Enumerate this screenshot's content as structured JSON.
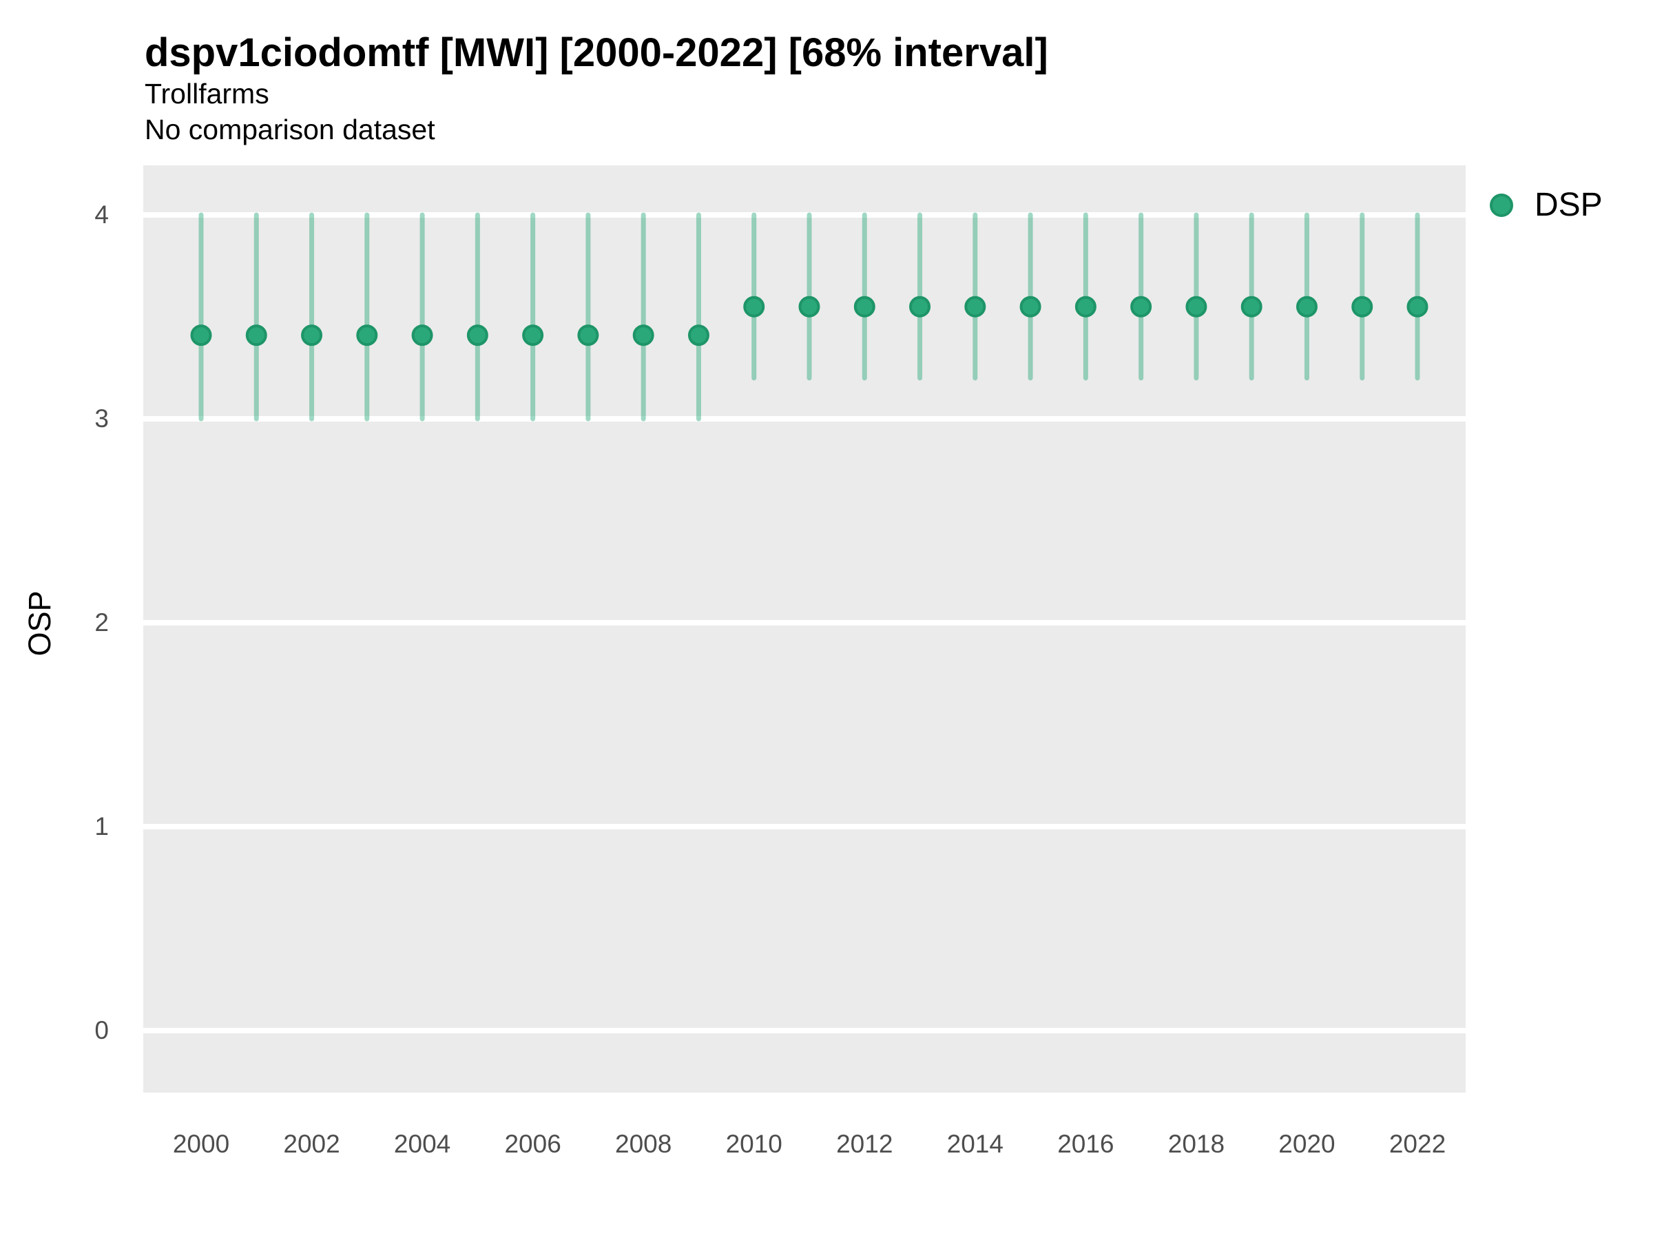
{
  "chart_data": {
    "type": "scatter",
    "mark": "pointrange",
    "title": "dspv1ciodomtf [MWI] [2000-2022] [68% interval]",
    "subtitle": "Trollfarms",
    "note": "No comparison dataset",
    "ylabel": "OSP",
    "xlabel": "",
    "interval_label": "68% interval",
    "ylim": [
      0,
      4
    ],
    "xlim": [
      1999,
      2023
    ],
    "grid": true,
    "legend_position": "right",
    "x": [
      2000,
      2001,
      2002,
      2003,
      2004,
      2005,
      2006,
      2007,
      2008,
      2009,
      2010,
      2011,
      2012,
      2013,
      2014,
      2015,
      2016,
      2017,
      2018,
      2019,
      2020,
      2021,
      2022
    ],
    "series": [
      {
        "name": "DSP",
        "values": [
          3.41,
          3.41,
          3.41,
          3.41,
          3.41,
          3.41,
          3.41,
          3.41,
          3.41,
          3.41,
          3.55,
          3.55,
          3.55,
          3.55,
          3.55,
          3.55,
          3.55,
          3.55,
          3.55,
          3.55,
          3.55,
          3.55,
          3.55
        ],
        "low": [
          3.0,
          3.0,
          3.0,
          3.0,
          3.0,
          3.0,
          3.0,
          3.0,
          3.0,
          3.0,
          3.2,
          3.2,
          3.2,
          3.2,
          3.2,
          3.2,
          3.2,
          3.2,
          3.2,
          3.2,
          3.2,
          3.2,
          3.2
        ],
        "high": [
          4.0,
          4.0,
          4.0,
          4.0,
          4.0,
          4.0,
          4.0,
          4.0,
          4.0,
          4.0,
          4.0,
          4.0,
          4.0,
          4.0,
          4.0,
          4.0,
          4.0,
          4.0,
          4.0,
          4.0,
          4.0,
          4.0,
          4.0
        ]
      }
    ],
    "x_ticks": [
      2000,
      2002,
      2004,
      2006,
      2008,
      2010,
      2012,
      2014,
      2016,
      2018,
      2020,
      2022
    ],
    "y_ticks": [
      4,
      3,
      2,
      1,
      0
    ]
  },
  "colors": {
    "marker_fill": "#2BA87A",
    "marker_stroke": "#1E9568",
    "interval_line": "#2BA87A",
    "interval_opacity": 0.45,
    "panel_bg": "#EBEBEB",
    "gridline": "#FFFFFF",
    "tick_text": "#4D4D4D"
  }
}
